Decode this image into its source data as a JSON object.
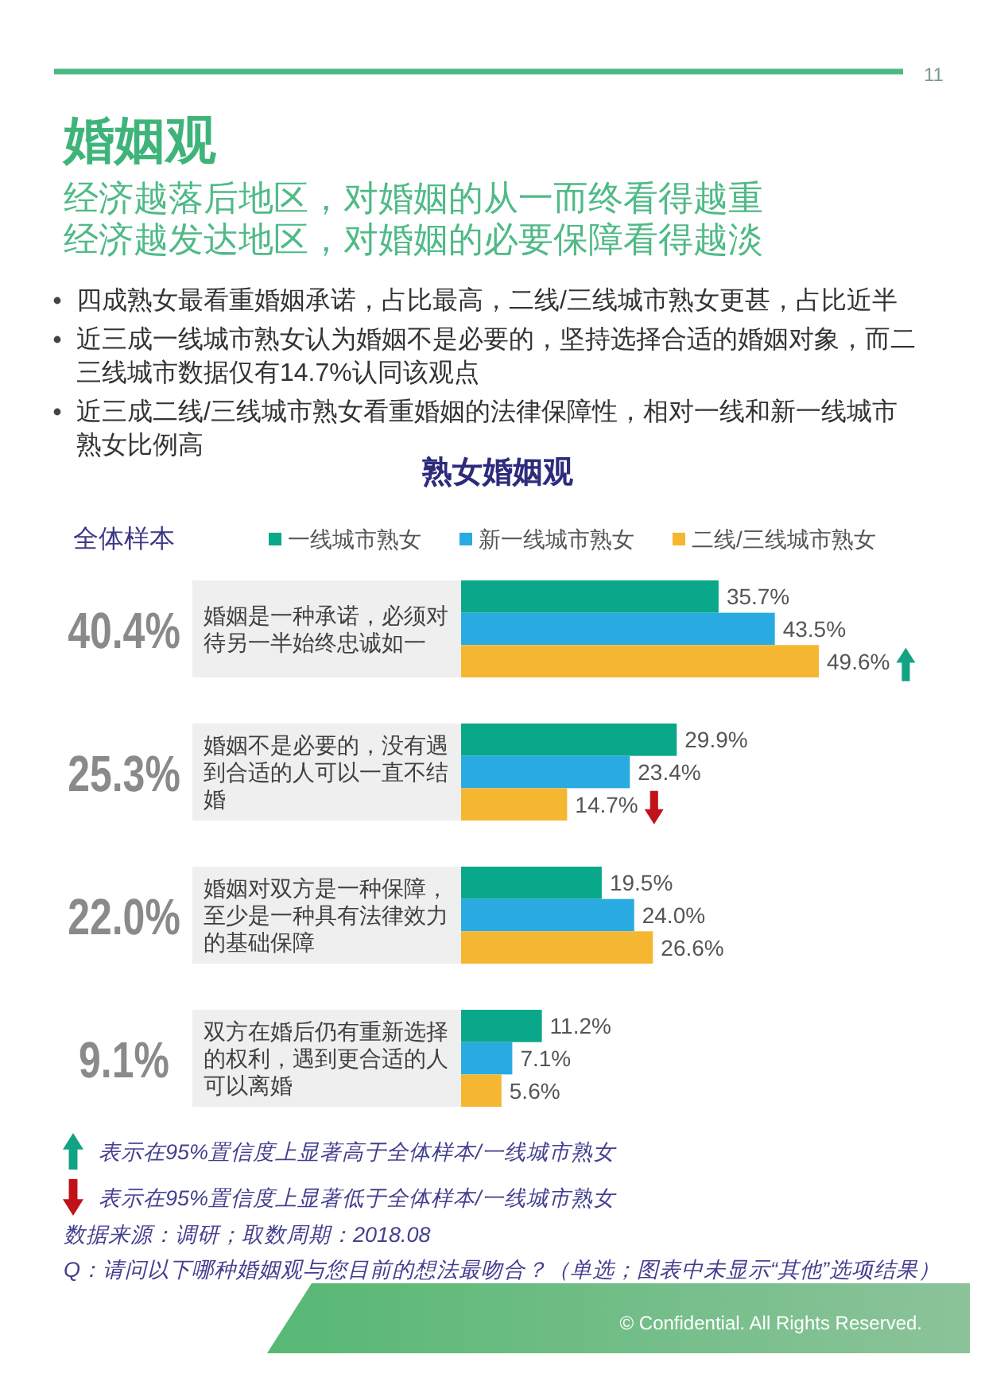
{
  "chart_data": {
    "type": "bar",
    "orientation": "horizontal",
    "title": "熟女婚姻观",
    "categories": [
      "婚姻是一种承诺，必须对待另一半始终忠诚如一",
      "婚姻不是必要的，没有遇到合适的人可以一直不结婚",
      "婚姻对双方是一种保障，至少是一种具有法律效力的基础保障",
      "双方在婚后仍有重新选择的权利，遇到更合适的人可以离婚"
    ],
    "series": [
      {
        "name": "一线城市熟女",
        "color": "#0aa88a",
        "values": [
          35.7,
          29.9,
          19.5,
          11.2
        ],
        "value_labels": [
          "35.7%",
          "29.9%",
          "19.5%",
          "11.2%"
        ]
      },
      {
        "name": "新一线城市熟女",
        "color": "#29abe2",
        "values": [
          43.5,
          23.4,
          24.0,
          7.1
        ],
        "value_labels": [
          "43.5%",
          "23.4%",
          "24.0%",
          "7.1%"
        ]
      },
      {
        "name": "二线/三线城市熟女",
        "color": "#f5b731",
        "values": [
          49.6,
          14.7,
          26.6,
          5.6
        ],
        "value_labels": [
          "49.6%",
          "14.7%",
          "26.6%",
          "5.6%"
        ]
      }
    ],
    "legend": "top",
    "tick_labels": "y",
    "annotations": [
      "11",
      "婚姻观",
      "经济越落后地区，对婚姻的从一而终看得越重",
      "经济越发达地区，对婚姻的必要保障看得越淡",
      "四成熟女最看重婚姻承诺，占比最高，二线/三线城市熟女更甚，占比近半",
      "近三成一线城市熟女认为婚姻不是必要的，坚持选择合适的婚姻对象，而二三线城市数据仅有14.7%认同该观点",
      "近三成二线/三线城市熟女看重婚姻的法律保障性，相对一线和新一线城市熟女比例高",
      "全体样本",
      "40.4%",
      "25.3%",
      "22.0%",
      "9.1%",
      "表示在95%置信度上显著高于全体样本/一线城市熟女",
      "表示在95%置信度上显著低于全体样本/一线城市熟女",
      "数据来源：调研；取数周期：2018.08",
      "Q：请问以下哪种婚姻观与您目前的想法最吻合？（单选；图表中未显示“其他”选项结果）",
      "© Confidential. All Rights Reserved."
    ]
  }
}
